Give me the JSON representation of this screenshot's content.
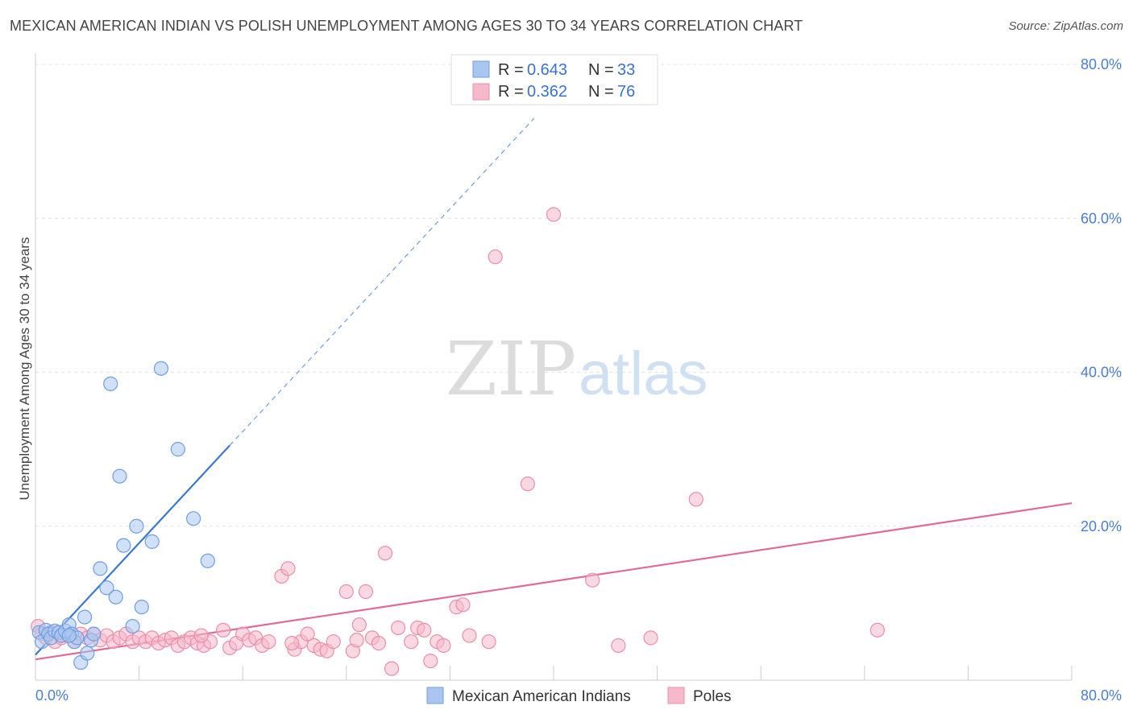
{
  "title": "MEXICAN AMERICAN INDIAN VS POLISH UNEMPLOYMENT AMONG AGES 30 TO 34 YEARS CORRELATION CHART",
  "source": "Source: ZipAtlas.com",
  "watermark": {
    "zip": "ZIP",
    "atlas": "atlas"
  },
  "legend": {
    "r_label": "R =",
    "n_label": "N =",
    "items": [
      {
        "r": "0.643",
        "n": "33"
      },
      {
        "r": "0.362",
        "n": "76"
      }
    ]
  },
  "colors": {
    "blue_fill": "#a9c6f0",
    "blue_stroke": "#6f9ee0",
    "blue_line": "#3b78d0",
    "pink_fill": "#f6b8cb",
    "pink_stroke": "#ea8fab",
    "pink_line": "#e06b97",
    "grid": "#e3e3e3",
    "tick_text": "#4a7fd0"
  },
  "chart_data": {
    "type": "scatter",
    "title": "MEXICAN AMERICAN INDIAN VS POLISH UNEMPLOYMENT AMONG AGES 30 TO 34 YEARS CORRELATION CHART",
    "xlabel": "",
    "ylabel": "Unemployment Among Ages 30 to 34 years",
    "xlim": [
      0,
      80
    ],
    "ylim": [
      0,
      80
    ],
    "x_tick_labels": [
      "0.0%",
      "80.0%"
    ],
    "y_ticks": [
      {
        "value": 20,
        "label": "20.0%"
      },
      {
        "value": 40,
        "label": "40.0%"
      },
      {
        "value": 60,
        "label": "60.0%"
      },
      {
        "value": 80,
        "label": "80.0%"
      }
    ],
    "grid": true,
    "series": [
      {
        "name": "Mexican American Indians",
        "r": 0.643,
        "n": 33,
        "trend": {
          "x0": 0,
          "y0": 3.3,
          "x1": 15,
          "y1": 30.5,
          "dash_to_x": 38.5,
          "dash_to_y": 73
        },
        "points": [
          [
            0.3,
            6.2
          ],
          [
            0.5,
            5.0
          ],
          [
            0.8,
            6.5
          ],
          [
            1.0,
            6.0
          ],
          [
            1.2,
            5.5
          ],
          [
            1.5,
            6.4
          ],
          [
            1.8,
            6.2
          ],
          [
            2.0,
            5.8
          ],
          [
            2.3,
            6.4
          ],
          [
            2.6,
            7.2
          ],
          [
            2.8,
            6.0
          ],
          [
            3.0,
            5.0
          ],
          [
            3.2,
            5.5
          ],
          [
            3.5,
            2.3
          ],
          [
            3.8,
            8.2
          ],
          [
            4.0,
            3.5
          ],
          [
            4.3,
            5.2
          ],
          [
            4.5,
            6.0
          ],
          [
            5.0,
            14.5
          ],
          [
            5.5,
            12.0
          ],
          [
            5.8,
            38.5
          ],
          [
            6.2,
            10.8
          ],
          [
            6.5,
            26.5
          ],
          [
            6.8,
            17.5
          ],
          [
            7.5,
            7.0
          ],
          [
            7.8,
            20.0
          ],
          [
            8.2,
            9.5
          ],
          [
            9.0,
            18.0
          ],
          [
            9.7,
            40.5
          ],
          [
            11.0,
            30.0
          ],
          [
            12.2,
            21.0
          ],
          [
            13.3,
            15.5
          ],
          [
            2.6,
            5.8
          ]
        ]
      },
      {
        "name": "Poles",
        "r": 0.362,
        "n": 76,
        "trend": {
          "x0": 0,
          "y0": 2.7,
          "x1": 80,
          "y1": 23.0
        },
        "points": [
          [
            0.2,
            7.0
          ],
          [
            0.5,
            6.0
          ],
          [
            0.8,
            5.5
          ],
          [
            1.2,
            6.2
          ],
          [
            1.5,
            5.0
          ],
          [
            2.0,
            5.5
          ],
          [
            2.5,
            5.8
          ],
          [
            3.0,
            5.0
          ],
          [
            3.5,
            6.0
          ],
          [
            4.0,
            5.5
          ],
          [
            4.5,
            6.0
          ],
          [
            5.0,
            5.2
          ],
          [
            5.5,
            5.8
          ],
          [
            6.0,
            5.0
          ],
          [
            6.5,
            5.5
          ],
          [
            7.0,
            6.0
          ],
          [
            7.5,
            5.0
          ],
          [
            8.0,
            5.5
          ],
          [
            8.5,
            5.0
          ],
          [
            9.0,
            5.5
          ],
          [
            9.5,
            4.8
          ],
          [
            10.0,
            5.2
          ],
          [
            10.5,
            5.5
          ],
          [
            11.0,
            4.5
          ],
          [
            11.5,
            5.0
          ],
          [
            12.0,
            5.5
          ],
          [
            12.5,
            4.8
          ],
          [
            13.0,
            4.5
          ],
          [
            13.5,
            5.0
          ],
          [
            14.5,
            6.5
          ],
          [
            15.0,
            4.2
          ],
          [
            15.5,
            4.8
          ],
          [
            16.0,
            6.0
          ],
          [
            16.5,
            5.2
          ],
          [
            17.0,
            5.5
          ],
          [
            17.5,
            4.5
          ],
          [
            18.0,
            5.0
          ],
          [
            19.0,
            13.5
          ],
          [
            19.5,
            14.5
          ],
          [
            20.0,
            4.0
          ],
          [
            20.5,
            5.0
          ],
          [
            21.0,
            6.0
          ],
          [
            21.5,
            4.5
          ],
          [
            22.0,
            4.0
          ],
          [
            22.5,
            3.8
          ],
          [
            23.0,
            5.0
          ],
          [
            24.0,
            11.5
          ],
          [
            24.5,
            3.8
          ],
          [
            25.0,
            7.2
          ],
          [
            25.5,
            11.5
          ],
          [
            26.0,
            5.5
          ],
          [
            26.5,
            4.8
          ],
          [
            27.0,
            16.5
          ],
          [
            27.5,
            1.5
          ],
          [
            28.0,
            6.8
          ],
          [
            29.0,
            5.0
          ],
          [
            29.5,
            6.8
          ],
          [
            30.0,
            6.5
          ],
          [
            30.5,
            2.5
          ],
          [
            31.0,
            5.0
          ],
          [
            31.5,
            4.5
          ],
          [
            32.5,
            9.5
          ],
          [
            33.0,
            9.8
          ],
          [
            35.0,
            5.0
          ],
          [
            35.5,
            55.0
          ],
          [
            38.0,
            25.5
          ],
          [
            40.0,
            60.5
          ],
          [
            43.0,
            13.0
          ],
          [
            45.0,
            4.5
          ],
          [
            47.5,
            5.5
          ],
          [
            51.0,
            23.5
          ],
          [
            65.0,
            6.5
          ],
          [
            19.8,
            4.8
          ],
          [
            24.8,
            5.2
          ],
          [
            33.5,
            5.8
          ],
          [
            12.8,
            5.8
          ]
        ]
      }
    ]
  }
}
